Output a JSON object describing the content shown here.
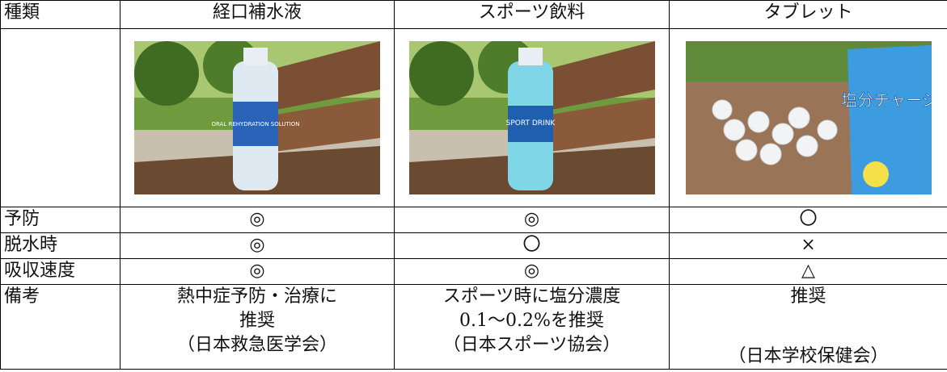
{
  "table": {
    "header": [
      "種類",
      "経口補水液",
      "スポーツ飲料",
      "タブレット"
    ],
    "images": [
      {
        "label": "ORAL REHYDRATION SOLUTION"
      },
      {
        "label": "SPORT DRINK"
      },
      {
        "label": "塩分チャージ"
      }
    ],
    "rows": [
      [
        "予防",
        "◎",
        "◎",
        "〇"
      ],
      [
        "脱水時",
        "◎",
        "〇",
        "×"
      ],
      [
        "吸収速度",
        "◎",
        "◎",
        "△"
      ]
    ],
    "notes": {
      "label": "備考",
      "cells": [
        [
          "熱中症予防・治療に",
          "推奨",
          "（日本救急医学会）"
        ],
        [
          "スポーツ時に塩分濃度",
          "0.1～0.2%を推奨",
          "（日本スポーツ協会）"
        ],
        [
          "推奨",
          "（日本学校保健会）"
        ]
      ]
    }
  }
}
